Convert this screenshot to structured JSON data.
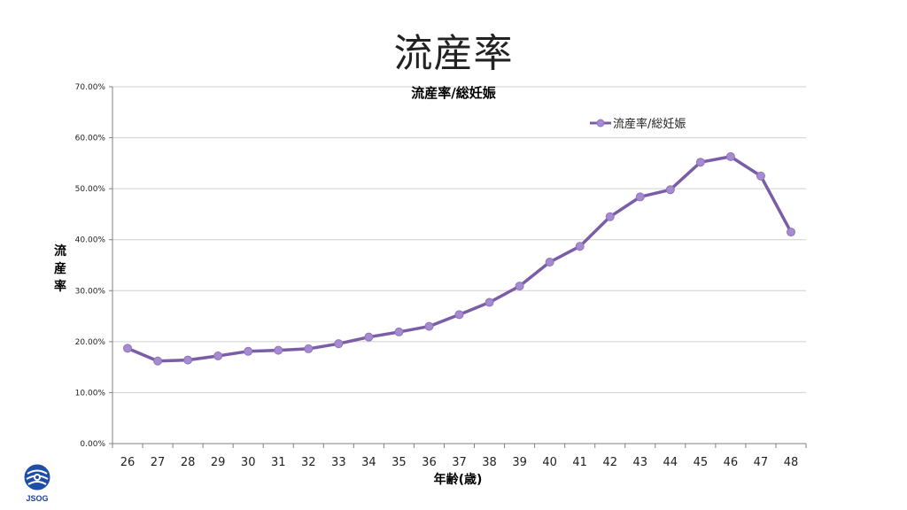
{
  "slide": {
    "title": "流産率"
  },
  "chart_data": {
    "type": "line",
    "title": "流産率/総妊娠",
    "xlabel": "年齢(歳)",
    "ylabel": "流産率",
    "categories": [
      "26",
      "27",
      "28",
      "29",
      "30",
      "31",
      "32",
      "33",
      "34",
      "35",
      "36",
      "37",
      "38",
      "39",
      "40",
      "41",
      "42",
      "43",
      "44",
      "45",
      "46",
      "47",
      "48"
    ],
    "series": [
      {
        "name": "流産率/総妊娠",
        "values": [
          18.7,
          16.2,
          16.4,
          17.2,
          18.1,
          18.3,
          18.6,
          19.6,
          20.9,
          21.9,
          23.0,
          25.3,
          27.7,
          30.9,
          35.6,
          38.7,
          44.5,
          48.4,
          49.8,
          55.2,
          56.3,
          52.5,
          41.5
        ]
      }
    ],
    "ylim": [
      0,
      70
    ],
    "yticks": [
      "0.00%",
      "10.00%",
      "20.00%",
      "30.00%",
      "40.00%",
      "50.00%",
      "60.00%",
      "70.00%"
    ],
    "grid": true,
    "legend_position": "top-right",
    "colors": {
      "line": "#7b5ca6",
      "marker_fill": "#a78bd0",
      "grid": "#d0d0d0",
      "axis": "#808080"
    }
  },
  "logo": {
    "text": "JSOG"
  }
}
